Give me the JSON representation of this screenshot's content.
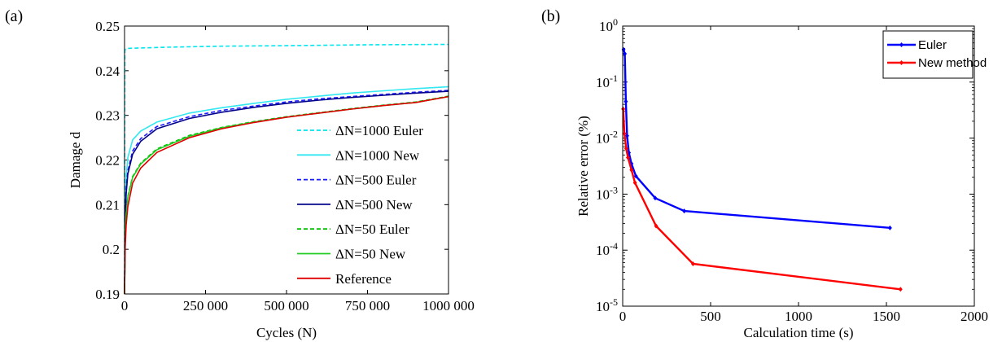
{
  "chart_data": [
    {
      "panel_label": "(a)",
      "type": "line",
      "xlabel": "Cycles (N)",
      "ylabel": "Damage d",
      "xlim": [
        0,
        1000000
      ],
      "ylim": [
        0.19,
        0.25
      ],
      "xticks": [
        0,
        250000,
        500000,
        750000,
        1000000
      ],
      "xtick_labels": [
        "0",
        "250 000",
        "500 000",
        "750 000",
        "1000 000"
      ],
      "yticks": [
        0.19,
        0.2,
        0.21,
        0.22,
        0.23,
        0.24,
        0.25
      ],
      "ytick_labels": [
        "0.19",
        "0.2",
        "0.21",
        "0.22",
        "0.23",
        "0.24",
        "0.25"
      ],
      "legend_position": "right",
      "series": [
        {
          "name": "ΔN=1000 Euler",
          "color": "#00e5ee",
          "dash": true,
          "x": [
            0,
            1000,
            3000,
            10000,
            50000,
            150000,
            300000,
            500000,
            750000,
            1000000
          ],
          "y": [
            0.19,
            0.2445,
            0.2448,
            0.245,
            0.2451,
            0.2453,
            0.2455,
            0.2456,
            0.2458,
            0.2459
          ]
        },
        {
          "name": "ΔN=1000 New",
          "color": "#33e8f0",
          "dash": false,
          "x": [
            0,
            2000,
            5000,
            10000,
            25000,
            50000,
            100000,
            200000,
            300000,
            400000,
            500000,
            600000,
            700000,
            800000,
            900000,
            1000000
          ],
          "y": [
            0.19,
            0.209,
            0.216,
            0.2205,
            0.2245,
            0.2265,
            0.2285,
            0.2305,
            0.2317,
            0.2327,
            0.2336,
            0.2343,
            0.235,
            0.2355,
            0.236,
            0.2364
          ]
        },
        {
          "name": "ΔN=500 Euler",
          "color": "#1a1aff",
          "dash": true,
          "x": [
            0,
            2000,
            5000,
            10000,
            25000,
            50000,
            100000,
            200000,
            300000,
            400000,
            500000,
            600000,
            700000,
            800000,
            900000,
            1000000
          ],
          "y": [
            0.19,
            0.207,
            0.2135,
            0.2175,
            0.222,
            0.2248,
            0.2275,
            0.2297,
            0.2311,
            0.2321,
            0.233,
            0.2337,
            0.2342,
            0.2347,
            0.2352,
            0.2356
          ]
        },
        {
          "name": "ΔN=500 New",
          "color": "#00008b",
          "dash": false,
          "x": [
            0,
            2000,
            5000,
            10000,
            25000,
            50000,
            100000,
            200000,
            300000,
            400000,
            500000,
            600000,
            700000,
            800000,
            900000,
            1000000
          ],
          "y": [
            0.19,
            0.206,
            0.2125,
            0.2168,
            0.2213,
            0.2242,
            0.227,
            0.2293,
            0.2307,
            0.2318,
            0.2327,
            0.2334,
            0.234,
            0.2345,
            0.235,
            0.2354
          ]
        },
        {
          "name": "ΔN=50 Euler",
          "color": "#00c000",
          "dash": true,
          "x": [
            0,
            2000,
            5000,
            10000,
            25000,
            50000,
            100000,
            200000,
            300000,
            400000,
            500000,
            600000,
            700000,
            800000,
            900000,
            1000000
          ],
          "y": [
            0.19,
            0.203,
            0.208,
            0.2118,
            0.2163,
            0.2193,
            0.2225,
            0.2255,
            0.2273,
            0.2286,
            0.2297,
            0.2306,
            0.2315,
            0.2323,
            0.233,
            0.2343
          ]
        },
        {
          "name": "ΔN=50 New",
          "color": "#22cc22",
          "dash": false,
          "x": [
            0,
            2000,
            5000,
            10000,
            25000,
            50000,
            100000,
            200000,
            300000,
            400000,
            500000,
            600000,
            700000,
            800000,
            900000,
            1000000
          ],
          "y": [
            0.19,
            0.2028,
            0.2078,
            0.2116,
            0.2161,
            0.2191,
            0.2223,
            0.2253,
            0.2272,
            0.2285,
            0.2296,
            0.2305,
            0.2314,
            0.2322,
            0.2329,
            0.2342
          ]
        },
        {
          "name": "Reference",
          "color": "#e00000",
          "dash": false,
          "x": [
            0,
            2000,
            5000,
            10000,
            25000,
            50000,
            100000,
            200000,
            300000,
            400000,
            500000,
            600000,
            700000,
            800000,
            900000,
            1000000
          ],
          "y": [
            0.19,
            0.2005,
            0.2055,
            0.2095,
            0.2148,
            0.2182,
            0.2217,
            0.225,
            0.227,
            0.2284,
            0.2296,
            0.2305,
            0.2314,
            0.2322,
            0.2329,
            0.2342
          ]
        }
      ]
    },
    {
      "panel_label": "(b)",
      "type": "line",
      "xlabel": "Calculation time (s)",
      "ylabel": "Relative error (%)",
      "xlim": [
        0,
        2000
      ],
      "ylim": [
        1e-05,
        1
      ],
      "yscale": "log",
      "xticks": [
        0,
        500,
        1000,
        1500,
        2000
      ],
      "xtick_labels": [
        "0",
        "500",
        "1000",
        "1500",
        "2000"
      ],
      "yticks": [
        1e-05,
        0.0001,
        0.001,
        0.01,
        0.1,
        1
      ],
      "ytick_labels": [
        {
          "base": "10",
          "exp": "-5"
        },
        {
          "base": "10",
          "exp": "-4"
        },
        {
          "base": "10",
          "exp": "-3"
        },
        {
          "base": "10",
          "exp": "-2"
        },
        {
          "base": "10",
          "exp": "-1"
        },
        {
          "base": "10",
          "exp": "0"
        }
      ],
      "legend_position": "top-right",
      "series": [
        {
          "name": "Euler",
          "color": "#0000ff",
          "x": [
            5,
            12,
            18,
            25,
            35,
            50,
            75,
            185,
            350,
            1520
          ],
          "y": [
            0.38,
            0.32,
            0.045,
            0.011,
            0.0055,
            0.0035,
            0.0021,
            0.00085,
            0.0005,
            0.00025
          ]
        },
        {
          "name": "New method",
          "color": "#ff0000",
          "x": [
            3,
            10,
            20,
            30,
            50,
            70,
            190,
            400,
            1580
          ],
          "y": [
            0.033,
            0.012,
            0.0065,
            0.0045,
            0.0027,
            0.0016,
            0.00027,
            5.7e-05,
            2e-05
          ]
        }
      ]
    }
  ]
}
